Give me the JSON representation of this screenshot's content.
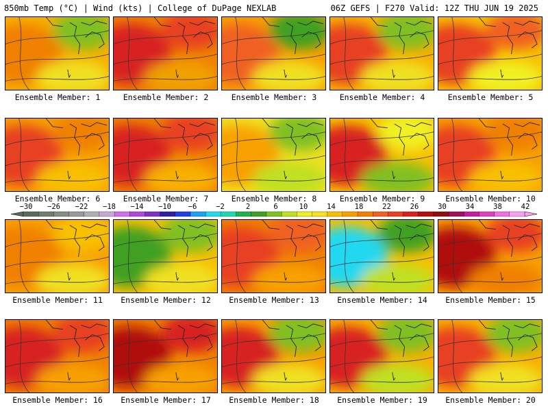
{
  "header": {
    "left": "850mb Temp (°C) | Wind (kts) | College of DuPage NEXLAB",
    "right": "06Z GEFS | F270 Valid: 12Z THU JUN 19 2025"
  },
  "colorbar": {
    "labels": [
      "−30",
      "−26",
      "−22",
      "−18",
      "−14",
      "−10",
      "−6",
      "−2",
      "2",
      "6",
      "10",
      "14",
      "18",
      "22",
      "26",
      "30",
      "34",
      "38",
      "42"
    ],
    "colors": [
      "#5c6a5c",
      "#707c70",
      "#848f84",
      "#9a9a9a",
      "#b0b0b0",
      "#c8a8d8",
      "#d070e8",
      "#b048d8",
      "#8030c0",
      "#3020a0",
      "#2040e0",
      "#20a0f0",
      "#20d8f0",
      "#20d8b0",
      "#20b050",
      "#40a020",
      "#80c020",
      "#c0e020",
      "#f0f020",
      "#f8e020",
      "#f8c000",
      "#f8a000",
      "#f08000",
      "#f06020",
      "#e84020",
      "#d82020",
      "#b01010",
      "#901010",
      "#a01060",
      "#c020a0",
      "#e040c0",
      "#f070e0",
      "#f8a0f0"
    ],
    "icon": "colorbar-arrows"
  },
  "members": [
    {
      "caption": "Ensemble Member: 1",
      "base": "#f7b000",
      "blobs": [
        {
          "c": "#f08000"
        },
        {
          "c": "#80c020"
        },
        {
          "c": "#f0e020"
        }
      ]
    },
    {
      "caption": "Ensemble Member: 2",
      "base": "#f08000",
      "blobs": [
        {
          "c": "#d82020"
        },
        {
          "c": "#e84020"
        },
        {
          "c": "#f0a000"
        }
      ]
    },
    {
      "caption": "Ensemble Member: 3",
      "base": "#f8a000",
      "blobs": [
        {
          "c": "#f06020"
        },
        {
          "c": "#40a020"
        },
        {
          "c": "#f0e020"
        }
      ]
    },
    {
      "caption": "Ensemble Member: 4",
      "base": "#f8b000",
      "blobs": [
        {
          "c": "#e84020"
        },
        {
          "c": "#80c020"
        },
        {
          "c": "#f0e020"
        }
      ]
    },
    {
      "caption": "Ensemble Member: 5",
      "base": "#f8c000",
      "blobs": [
        {
          "c": "#e84020"
        },
        {
          "c": "#f06020"
        },
        {
          "c": "#f0f020"
        }
      ]
    },
    {
      "caption": "Ensemble Member: 6",
      "base": "#f8a000",
      "blobs": [
        {
          "c": "#e84020"
        },
        {
          "c": "#f08000"
        },
        {
          "c": "#f8c000"
        }
      ]
    },
    {
      "caption": "Ensemble Member: 7",
      "base": "#f08000",
      "blobs": [
        {
          "c": "#d82020"
        },
        {
          "c": "#e84020"
        },
        {
          "c": "#f8b000"
        }
      ]
    },
    {
      "caption": "Ensemble Member: 8",
      "base": "#f0e020",
      "blobs": [
        {
          "c": "#f8a000"
        },
        {
          "c": "#80c020"
        },
        {
          "c": "#c0e020"
        }
      ]
    },
    {
      "caption": "Ensemble Member: 9",
      "base": "#f8c000",
      "blobs": [
        {
          "c": "#d82020"
        },
        {
          "c": "#f0f020"
        },
        {
          "c": "#80c020"
        }
      ]
    },
    {
      "caption": "Ensemble Member: 10",
      "base": "#f8a000",
      "blobs": [
        {
          "c": "#e84020"
        },
        {
          "c": "#f08000"
        },
        {
          "c": "#f8c000"
        }
      ]
    },
    {
      "caption": "Ensemble Member: 11",
      "base": "#f8a000",
      "blobs": [
        {
          "c": "#f08000"
        },
        {
          "c": "#f8c000"
        },
        {
          "c": "#f0e020"
        }
      ]
    },
    {
      "caption": "Ensemble Member: 12",
      "base": "#f8c000",
      "blobs": [
        {
          "c": "#40a020"
        },
        {
          "c": "#80c020"
        },
        {
          "c": "#f0e020"
        }
      ]
    },
    {
      "caption": "Ensemble Member: 13",
      "base": "#f08000",
      "blobs": [
        {
          "c": "#e84020"
        },
        {
          "c": "#f06020"
        },
        {
          "c": "#f8a000"
        }
      ]
    },
    {
      "caption": "Ensemble Member: 14",
      "base": "#f8c000",
      "blobs": [
        {
          "c": "#20d8f0"
        },
        {
          "c": "#40a020"
        },
        {
          "c": "#c0e020"
        }
      ]
    },
    {
      "caption": "Ensemble Member: 15",
      "base": "#f8a000",
      "blobs": [
        {
          "c": "#b01010"
        },
        {
          "c": "#e84020"
        },
        {
          "c": "#f08000"
        }
      ]
    },
    {
      "caption": "Ensemble Member: 16",
      "base": "#f08000",
      "blobs": [
        {
          "c": "#d82020"
        },
        {
          "c": "#e84020"
        },
        {
          "c": "#f8a000"
        }
      ]
    },
    {
      "caption": "Ensemble Member: 17",
      "base": "#f08000",
      "blobs": [
        {
          "c": "#b01010"
        },
        {
          "c": "#d82020"
        },
        {
          "c": "#f8a000"
        }
      ]
    },
    {
      "caption": "Ensemble Member: 18",
      "base": "#f8a000",
      "blobs": [
        {
          "c": "#d82020"
        },
        {
          "c": "#80c020"
        },
        {
          "c": "#f0e020"
        }
      ]
    },
    {
      "caption": "Ensemble Member: 19",
      "base": "#f8b000",
      "blobs": [
        {
          "c": "#d82020"
        },
        {
          "c": "#80c020"
        },
        {
          "c": "#c0e020"
        }
      ]
    },
    {
      "caption": "Ensemble Member: 20",
      "base": "#f8b000",
      "blobs": [
        {
          "c": "#e84020"
        },
        {
          "c": "#80c020"
        },
        {
          "c": "#f0e020"
        }
      ]
    }
  ]
}
